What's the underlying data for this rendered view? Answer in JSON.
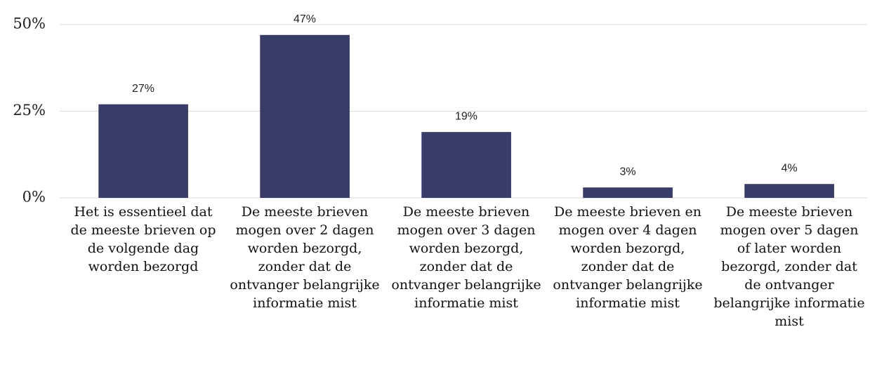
{
  "chart_data": {
    "type": "bar",
    "categories": [
      "Het is essentieel dat de meeste brieven op de volgende dag worden bezorgd",
      "De meeste brieven mogen over 2 dagen worden bezorgd, zonder dat de ontvanger belangrijke informatie mist",
      "De meeste brieven mogen over 3 dagen worden bezorgd, zonder dat de ontvanger belangrijke informatie mist",
      "De meeste brieven en mogen over 4 dagen worden bezorgd, zonder dat de ontvanger belangrijke informatie mist",
      "De meeste brieven mogen over 5 dagen of later worden bezorgd, zonder dat de ontvanger belangrijke informatie mist"
    ],
    "values": [
      27,
      47,
      19,
      3,
      4
    ],
    "value_labels": [
      "27%",
      "47%",
      "19%",
      "3%",
      "4%"
    ],
    "color": "#383c66",
    "ylim": [
      0,
      50
    ],
    "yticks": [
      {
        "value": 0,
        "label": "0%"
      },
      {
        "value": 25,
        "label": "25%"
      },
      {
        "value": 50,
        "label": "50%"
      }
    ],
    "grid": true
  }
}
